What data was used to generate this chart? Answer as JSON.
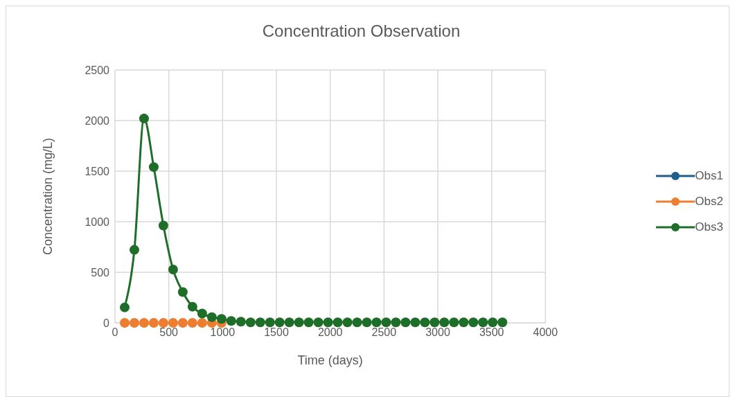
{
  "chart_data": {
    "type": "line",
    "title": "Concentration Observation",
    "xlabel": "Time (days)",
    "ylabel": "Concentration (mg/L)",
    "x": [
      90,
      180,
      270,
      360,
      450,
      540,
      630,
      720,
      810,
      900,
      990,
      1080,
      1170,
      1260,
      1350,
      1440,
      1530,
      1620,
      1710,
      1800,
      1890,
      1980,
      2070,
      2160,
      2250,
      2340,
      2430,
      2520,
      2610,
      2700,
      2790,
      2880,
      2970,
      3060,
      3150,
      3240,
      3330,
      3420,
      3510,
      3600
    ],
    "xlim": [
      0,
      4000
    ],
    "xticks": [
      0,
      500,
      1000,
      1500,
      2000,
      2500,
      3000,
      3500,
      4000
    ],
    "ylim": [
      0,
      2500
    ],
    "yticks": [
      0,
      500,
      1000,
      1500,
      2000,
      2500
    ],
    "grid": true,
    "legend": "right",
    "marker": "circle",
    "line_style": "solid",
    "series": [
      {
        "name": "Obs1",
        "color": "#1f5f8b",
        "values": [
          null,
          null,
          null,
          null,
          null,
          null,
          null,
          null,
          null,
          null,
          null,
          null,
          null,
          null,
          null,
          null,
          null,
          null,
          null,
          null,
          null,
          null,
          null,
          null,
          null,
          null,
          null,
          null,
          null,
          null,
          null,
          null,
          null,
          null,
          null,
          null,
          null,
          null,
          null,
          null
        ]
      },
      {
        "name": "Obs2",
        "color": "#ed7d31",
        "values": [
          0,
          0,
          0,
          0,
          0,
          0,
          0,
          0,
          0,
          0,
          0,
          null,
          null,
          null,
          null,
          null,
          null,
          null,
          null,
          null,
          null,
          null,
          null,
          null,
          null,
          null,
          null,
          null,
          null,
          null,
          null,
          null,
          null,
          null,
          null,
          null,
          null,
          null,
          null,
          null
        ]
      },
      {
        "name": "Obs3",
        "color": "#1e6e2a",
        "values": [
          153,
          722,
          2020,
          1540,
          962,
          527,
          305,
          160,
          92,
          57,
          39,
          19,
          12,
          5,
          5,
          5,
          5,
          5,
          5,
          5,
          5,
          5,
          5,
          5,
          5,
          5,
          5,
          5,
          5,
          5,
          5,
          5,
          5,
          5,
          5,
          5,
          5,
          5,
          5,
          5
        ]
      }
    ]
  }
}
